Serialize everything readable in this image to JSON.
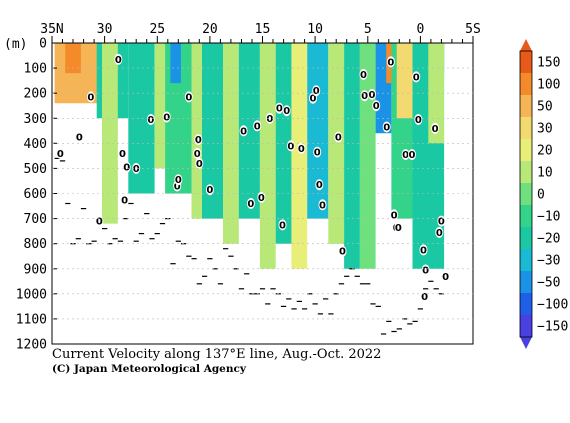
{
  "chart_data": {
    "type": "heatmap",
    "title": "Current Velocity along 137°E line, Aug.-Oct. 2022",
    "credit": "(C) Japan Meteorological Agency",
    "ylabel": "(m)",
    "x_axis": {
      "range_deg": [
        35,
        -5
      ],
      "tick_labels": [
        "35N",
        "30",
        "25",
        "20",
        "15",
        "10",
        "5",
        "0",
        "5S"
      ],
      "tick_values": [
        35,
        30,
        25,
        20,
        15,
        10,
        5,
        0,
        -5
      ]
    },
    "y_axis": {
      "range_m": [
        0,
        1200
      ],
      "tick_labels": [
        "0",
        "100",
        "200",
        "300",
        "400",
        "500",
        "600",
        "700",
        "800",
        "900",
        "1000",
        "1100",
        "1200"
      ],
      "tick_values": [
        0,
        100,
        200,
        300,
        400,
        500,
        600,
        700,
        800,
        900,
        1000,
        1100,
        1200
      ]
    },
    "colorbar": {
      "labels": [
        "150",
        "100",
        "50",
        "30",
        "20",
        "10",
        "0",
        "−10",
        "−20",
        "−30",
        "−50",
        "−100",
        "−150"
      ],
      "levels": [
        150,
        100,
        50,
        30,
        20,
        10,
        0,
        -10,
        -20,
        -30,
        -50,
        -100,
        -150
      ],
      "colors": [
        "#e85a1a",
        "#f58a2a",
        "#f5b455",
        "#f2da70",
        "#e8ef78",
        "#b7e878",
        "#6fe07e",
        "#33d38a",
        "#1ac9a4",
        "#1ab9d4",
        "#1a93e6",
        "#1f5fe8",
        "#4a3fe0"
      ]
    },
    "zero_contour_label": "0",
    "stations_deg": [
      34.5,
      34,
      33.5,
      33,
      32.5,
      32,
      31.5,
      31,
      30.5,
      30,
      29.5,
      29,
      28.5,
      28,
      27.5,
      27,
      26.5,
      26,
      25.5,
      25,
      24.5,
      24,
      23.5,
      23,
      22.5,
      22,
      21.5,
      21,
      20.5,
      20,
      19.5,
      19,
      18.5,
      18,
      17.5,
      17,
      16.5,
      16,
      15.5,
      15,
      14.5,
      14,
      13.5,
      13,
      12.5,
      12,
      11.5,
      11,
      10.5,
      10,
      9.5,
      9,
      8.5,
      8,
      7.5,
      7,
      6.5,
      6,
      5.5,
      5,
      4.5,
      4,
      3.5,
      3,
      2.5,
      2,
      1.5,
      1,
      0.5,
      0,
      -0.5,
      -1,
      -1.5,
      -2
    ],
    "bottom_depth_m": [
      460,
      470,
      640,
      800,
      780,
      660,
      800,
      790,
      700,
      740,
      800,
      780,
      790,
      700,
      640,
      790,
      760,
      680,
      780,
      760,
      720,
      700,
      880,
      790,
      800,
      850,
      860,
      960,
      930,
      860,
      900,
      960,
      820,
      850,
      900,
      980,
      920,
      1000,
      1000,
      980,
      1040,
      980,
      1000,
      1050,
      1020,
      1060,
      1030,
      1060,
      1000,
      1040,
      1080,
      1020,
      1080,
      1000,
      960,
      930,
      900,
      930,
      960,
      960,
      1040,
      1050,
      1160,
      1110,
      1150,
      1140,
      1100,
      1120,
      1110,
      1060,
      980,
      950,
      980,
      1000
    ],
    "sections": [
      {
        "x0": 34.6,
        "x1": 30.5,
        "z1": 240,
        "v": 80
      },
      {
        "x0": 33.8,
        "x1": 32.5,
        "z1": 120,
        "v": 140
      },
      {
        "x0": 30.6,
        "x1": 27.8,
        "z1": 300,
        "v": -20
      },
      {
        "x0": 30.0,
        "x1": 28.8,
        "z1": 720,
        "v": 15
      },
      {
        "x0": 27.8,
        "x1": 25.2,
        "z1": 600,
        "v": -15
      },
      {
        "x0": 25.3,
        "x1": 24.2,
        "z1": 500,
        "v": 15
      },
      {
        "x0": 24.2,
        "x1": 21.5,
        "z1": 600,
        "v": -10
      },
      {
        "x0": 23.6,
        "x1": 22.6,
        "z1": 160,
        "v": -40
      },
      {
        "x0": 21.8,
        "x1": 20.6,
        "z1": 700,
        "v": 15
      },
      {
        "x0": 20.6,
        "x1": 18.2,
        "z1": 700,
        "v": -15
      },
      {
        "x0": 18.6,
        "x1": 17.4,
        "z1": 800,
        "v": 10
      },
      {
        "x0": 17.4,
        "x1": 15.2,
        "z1": 700,
        "v": -20
      },
      {
        "x0": 15.2,
        "x1": 13.8,
        "z1": 900,
        "v": 10
      },
      {
        "x0": 13.8,
        "x1": 12.0,
        "z1": 800,
        "v": -15
      },
      {
        "x0": 12.0,
        "x1": 10.6,
        "z1": 900,
        "v": 20
      },
      {
        "x0": 10.6,
        "x1": 8.8,
        "z1": 700,
        "v": -25
      },
      {
        "x0": 8.8,
        "x1": 7.2,
        "z1": 800,
        "v": 10
      },
      {
        "x0": 7.2,
        "x1": 5.6,
        "z1": 900,
        "v": -15
      },
      {
        "x0": 5.6,
        "x1": 4.5,
        "z1": 260,
        "v": 60
      },
      {
        "x0": 5.6,
        "x1": 4.2,
        "z1": 900,
        "v": 5
      },
      {
        "x0": 4.2,
        "x1": 2.8,
        "z1": 360,
        "v": -40
      },
      {
        "x0": 3.2,
        "x1": 0.2,
        "z1": 160,
        "v": 100
      },
      {
        "x0": 2.8,
        "x1": 0.8,
        "z1": 700,
        "v": -10
      },
      {
        "x0": 2.2,
        "x1": -0.6,
        "z1": 300,
        "v": 40
      },
      {
        "x0": 0.8,
        "x1": -2.0,
        "z1": 120,
        "v": -60
      },
      {
        "x0": 0.6,
        "x1": -2.0,
        "z1": 900,
        "v": -20
      },
      {
        "x0": -0.6,
        "x1": -2.0,
        "z1": 400,
        "v": 10
      }
    ],
    "zero_labels": [
      {
        "lat": 34.2,
        "z": 440
      },
      {
        "lat": 32.4,
        "z": 375
      },
      {
        "lat": 31.3,
        "z": 215
      },
      {
        "lat": 30.5,
        "z": 710
      },
      {
        "lat": 28.7,
        "z": 65
      },
      {
        "lat": 28.3,
        "z": 440
      },
      {
        "lat": 28.1,
        "z": 625
      },
      {
        "lat": 27.9,
        "z": 495
      },
      {
        "lat": 27.0,
        "z": 500
      },
      {
        "lat": 25.6,
        "z": 305
      },
      {
        "lat": 24.1,
        "z": 295
      },
      {
        "lat": 23.1,
        "z": 570
      },
      {
        "lat": 23.0,
        "z": 545
      },
      {
        "lat": 22.0,
        "z": 215
      },
      {
        "lat": 21.2,
        "z": 440
      },
      {
        "lat": 21.1,
        "z": 385
      },
      {
        "lat": 21.0,
        "z": 480
      },
      {
        "lat": 20.0,
        "z": 585
      },
      {
        "lat": 16.8,
        "z": 350
      },
      {
        "lat": 16.1,
        "z": 640
      },
      {
        "lat": 15.5,
        "z": 330
      },
      {
        "lat": 15.1,
        "z": 615
      },
      {
        "lat": 14.3,
        "z": 300
      },
      {
        "lat": 13.4,
        "z": 260
      },
      {
        "lat": 13.1,
        "z": 725
      },
      {
        "lat": 12.7,
        "z": 270
      },
      {
        "lat": 12.3,
        "z": 410
      },
      {
        "lat": 11.3,
        "z": 420
      },
      {
        "lat": 10.2,
        "z": 220
      },
      {
        "lat": 9.9,
        "z": 190
      },
      {
        "lat": 9.8,
        "z": 435
      },
      {
        "lat": 9.6,
        "z": 565
      },
      {
        "lat": 9.3,
        "z": 645
      },
      {
        "lat": 7.8,
        "z": 375
      },
      {
        "lat": 7.4,
        "z": 830
      },
      {
        "lat": 5.4,
        "z": 125
      },
      {
        "lat": 5.3,
        "z": 210
      },
      {
        "lat": 4.6,
        "z": 205
      },
      {
        "lat": 4.2,
        "z": 250
      },
      {
        "lat": 3.2,
        "z": 335
      },
      {
        "lat": 2.8,
        "z": 75
      },
      {
        "lat": 2.5,
        "z": 685
      },
      {
        "lat": 2.3,
        "z": 735
      },
      {
        "lat": 2.1,
        "z": 735
      },
      {
        "lat": 1.4,
        "z": 445
      },
      {
        "lat": 0.8,
        "z": 445
      },
      {
        "lat": 0.4,
        "z": 135
      },
      {
        "lat": 0.2,
        "z": 305
      },
      {
        "lat": -0.3,
        "z": 825
      },
      {
        "lat": -0.4,
        "z": 1010
      },
      {
        "lat": -0.5,
        "z": 905
      },
      {
        "lat": -1.4,
        "z": 340
      },
      {
        "lat": -1.8,
        "z": 755
      },
      {
        "lat": -2.0,
        "z": 710
      },
      {
        "lat": -2.4,
        "z": 930
      }
    ]
  }
}
